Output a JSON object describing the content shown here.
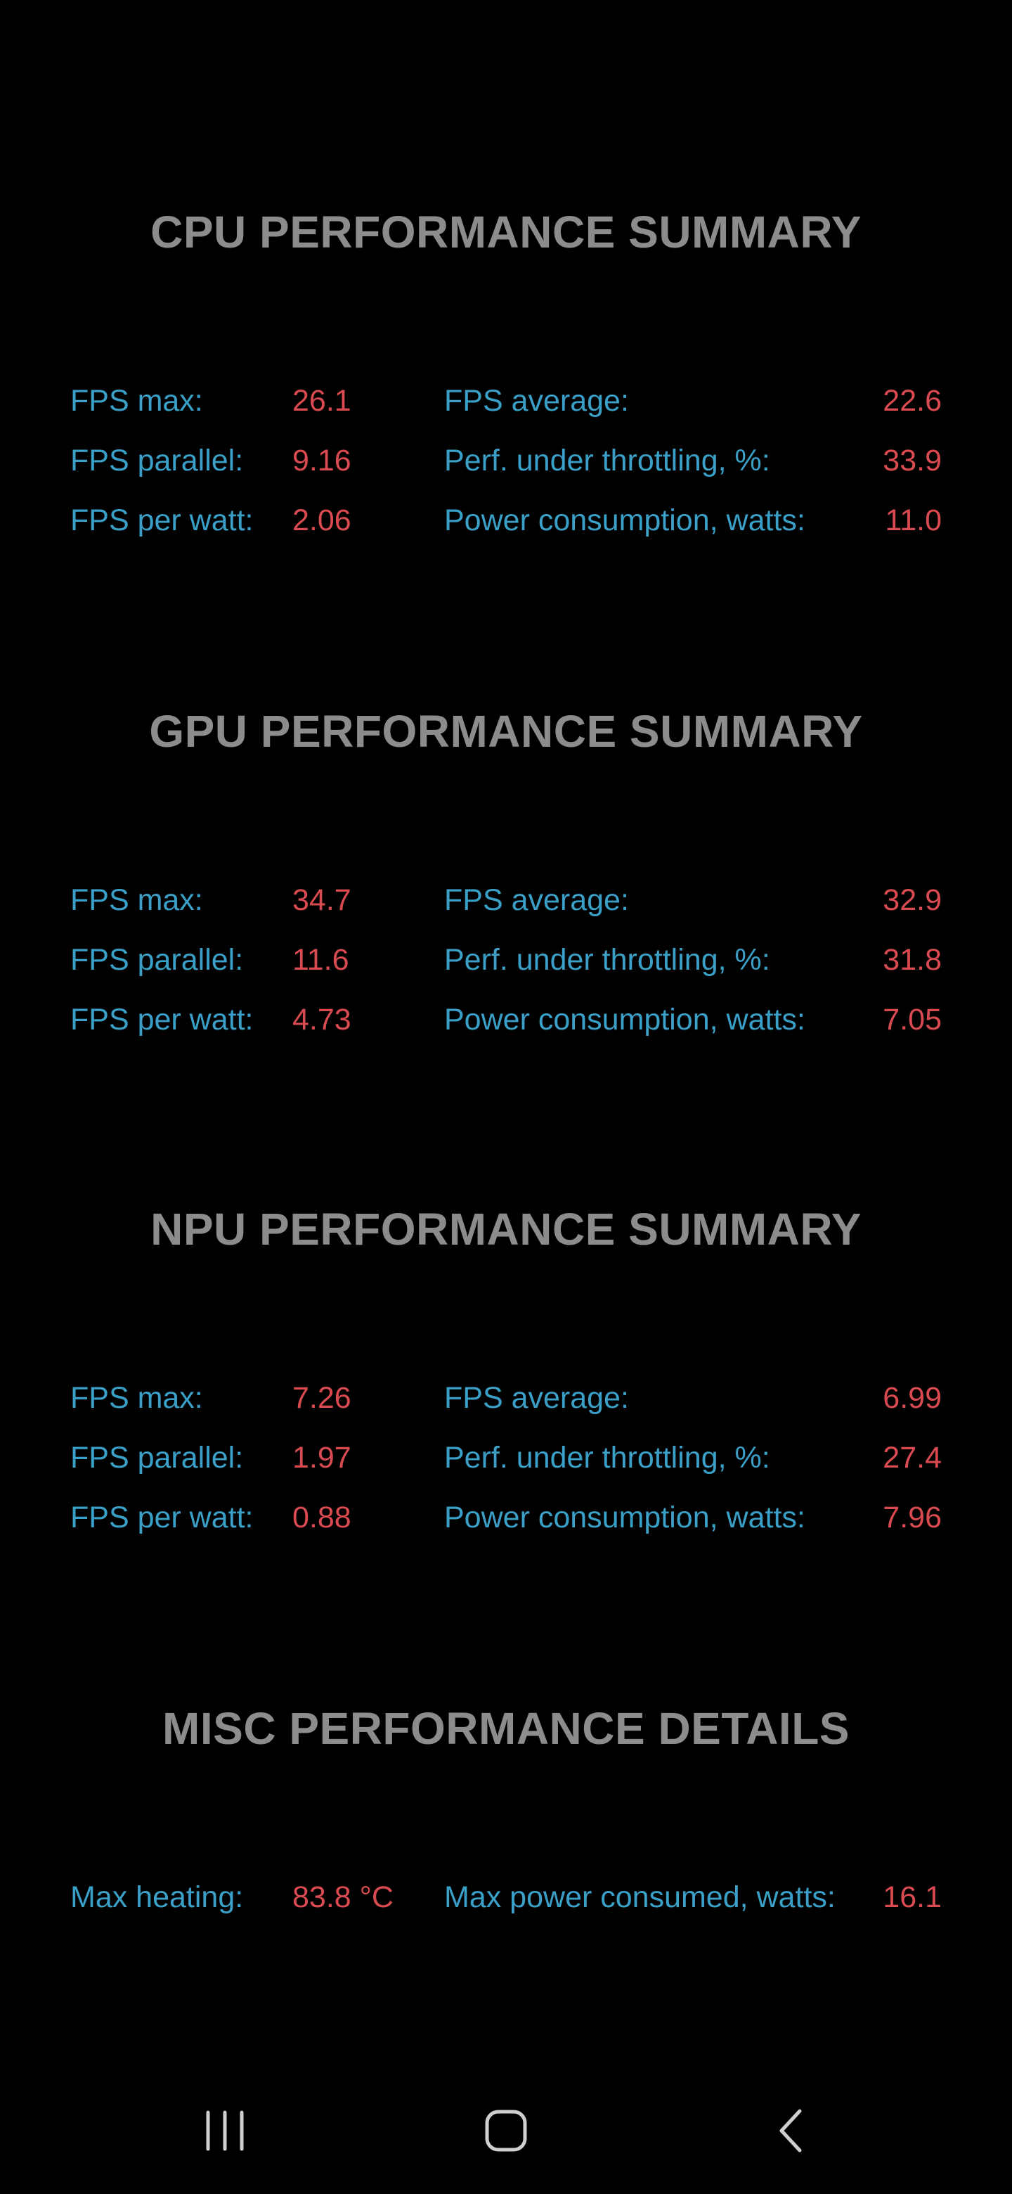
{
  "sections": [
    {
      "title": "CPU PERFORMANCE SUMMARY",
      "rows": [
        {
          "left_label": "FPS max:",
          "left_value": "26.1",
          "right_label": "FPS average:",
          "right_value": "22.6"
        },
        {
          "left_label": "FPS parallel:",
          "left_value": "9.16",
          "right_label": "Perf. under throttling, %:",
          "right_value": "33.9"
        },
        {
          "left_label": "FPS per watt:",
          "left_value": "2.06",
          "right_label": "Power consumption, watts:",
          "right_value": "11.0"
        }
      ]
    },
    {
      "title": "GPU PERFORMANCE SUMMARY",
      "rows": [
        {
          "left_label": "FPS max:",
          "left_value": "34.7",
          "right_label": "FPS average:",
          "right_value": "32.9"
        },
        {
          "left_label": "FPS parallel:",
          "left_value": "11.6",
          "right_label": "Perf. under throttling, %:",
          "right_value": "31.8"
        },
        {
          "left_label": "FPS per watt:",
          "left_value": "4.73",
          "right_label": "Power consumption, watts:",
          "right_value": "7.05"
        }
      ]
    },
    {
      "title": "NPU PERFORMANCE SUMMARY",
      "rows": [
        {
          "left_label": "FPS max:",
          "left_value": "7.26",
          "right_label": "FPS average:",
          "right_value": "6.99"
        },
        {
          "left_label": "FPS parallel:",
          "left_value": "1.97",
          "right_label": "Perf. under throttling, %:",
          "right_value": "27.4"
        },
        {
          "left_label": "FPS per watt:",
          "left_value": "0.88",
          "right_label": "Power consumption, watts:",
          "right_value": "7.96"
        }
      ]
    },
    {
      "title": "MISC PERFORMANCE DETAILS",
      "rows": [
        {
          "left_label": "Max heating:",
          "left_value": "83.8 °C",
          "right_label": "Max power consumed, watts:",
          "right_value": "16.1"
        }
      ]
    }
  ],
  "nav_bar": {
    "recents_icon": "recents-icon",
    "home_icon": "home-icon",
    "back_icon": "back-icon"
  },
  "colors": {
    "background": "#000000",
    "title": "#8c8c8c",
    "label": "#3aa0c8",
    "value": "#d94b50"
  }
}
